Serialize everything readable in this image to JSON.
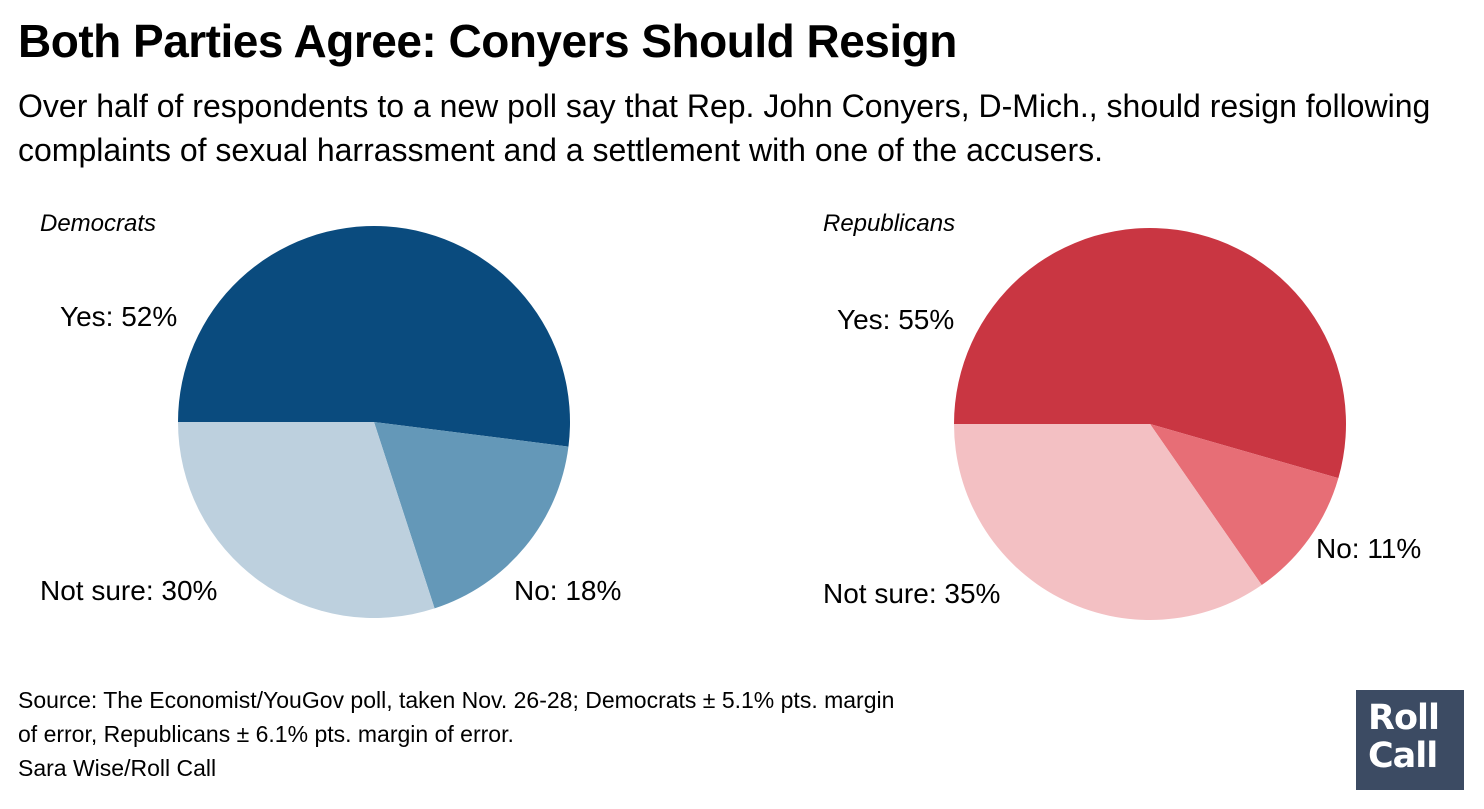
{
  "title": "Both Parties Agree: Conyers Should Resign",
  "subtitle": "Over half of respondents to a new poll say that Rep. John Conyers, D-Mich., should resign following complaints of sexual harrassment and a settlement with one of the accusers.",
  "footer": {
    "line1": "Source: The Economist/YouGov poll, taken Nov. 26-28; Democrats ± 5.1% pts. margin",
    "line2": "of error, Republicans ± 6.1% pts. margin of error.",
    "line3": "Sara Wise/Roll Call"
  },
  "logo": {
    "line1": "Roll",
    "line2": "Call"
  },
  "chart_data": [
    {
      "type": "pie",
      "title": "Democrats",
      "categories": [
        "Yes",
        "No",
        "Not sure"
      ],
      "values": [
        52,
        18,
        30
      ],
      "labels": [
        "Yes: 52%",
        "No: 18%",
        "Not sure: 30%"
      ],
      "colors": [
        "#0a4b7e",
        "#6498b8",
        "#bdd0de"
      ]
    },
    {
      "type": "pie",
      "title": "Republicans",
      "categories": [
        "Yes",
        "No",
        "Not sure"
      ],
      "values": [
        55,
        11,
        35
      ],
      "labels": [
        "Yes: 55%",
        "No: 11%",
        "Not sure: 35%"
      ],
      "colors": [
        "#c93642",
        "#e76e76",
        "#f3c0c3"
      ]
    }
  ]
}
